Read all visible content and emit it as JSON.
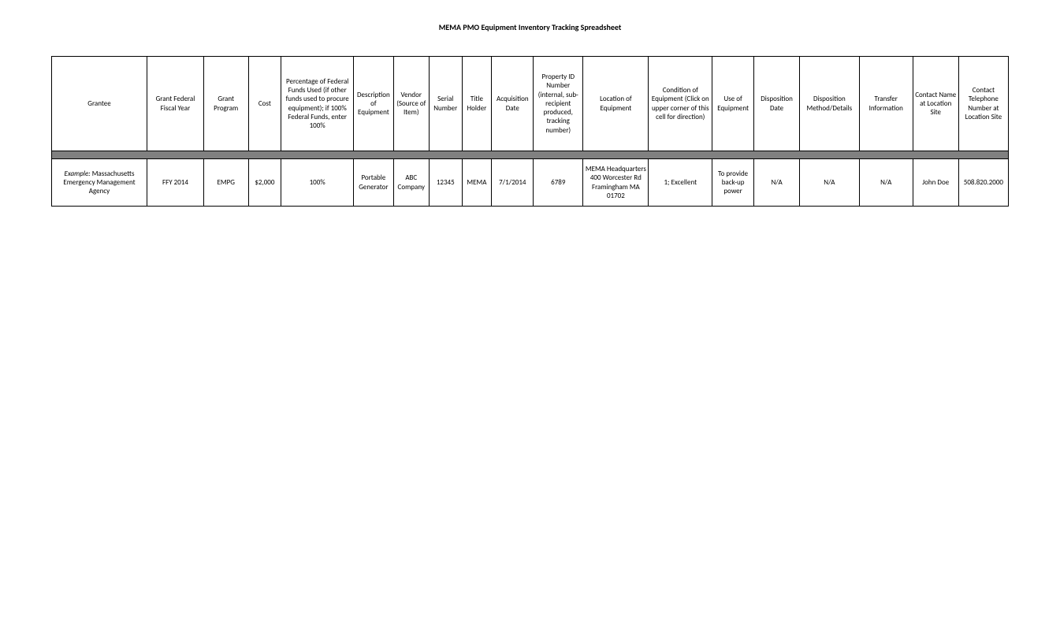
{
  "title": "MEMA PMO Equipment Inventory Tracking Spreadsheet",
  "table": {
    "columns": [
      "Grantee",
      "Grant Federal Fiscal Year",
      "Grant Program",
      "Cost",
      "Percentage of Federal Funds Used (if other funds used to procure equipment); if 100% Federal Funds, enter 100%",
      "Description of Equipment",
      "Vendor (Source of Item)",
      "Serial Number",
      "Title Holder",
      "Acquisition Date",
      "Property ID Number (internal, sub-recipient produced, tracking number)",
      "Location of Equipment",
      "Condition of Equipment (Click on upper corner of this cell for direction)",
      "Use of Equipment",
      "Disposition Date",
      "Disposition Method/Details",
      "Transfer Information",
      "Contact Name at Location Site",
      "Contact Telephone Number at Location Site"
    ],
    "rows": [
      {
        "grantee_prefix": "Example:",
        "grantee_rest": " Massachusetts Emergency Management Agency",
        "cells": [
          "",
          "FFY 2014",
          "EMPG",
          "$2,000",
          "100%",
          "Portable Generator",
          "ABC Company",
          "12345",
          "MEMA",
          "7/1/2014",
          "6789",
          "MEMA Headquarters 400 Worcester Rd Framingham MA 01702",
          "1; Excellent",
          "To provide back-up power",
          "N/A",
          "N/A",
          "N/A",
          "John Doe",
          "508.820.2000"
        ]
      }
    ]
  }
}
